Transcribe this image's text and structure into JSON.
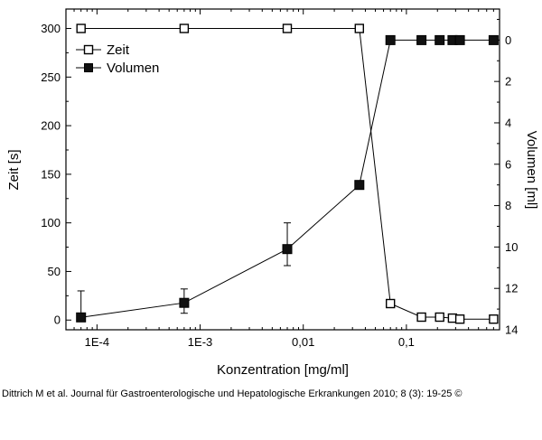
{
  "chart_data": {
    "type": "scatter",
    "xlabel": "Konzentration [mg/ml]",
    "ylabel": "Zeit [s]",
    "y2label": "Volumen [ml]",
    "xscale": "log",
    "xlim": [
      5e-05,
      0.8
    ],
    "ylim": [
      -10,
      320
    ],
    "y2lim": [
      14,
      -1.5
    ],
    "x_ticks": [
      {
        "value": 0.0001,
        "label": "1E-4"
      },
      {
        "value": 0.001,
        "label": "1E-3"
      },
      {
        "value": 0.01,
        "label": "0,01"
      },
      {
        "value": 0.1,
        "label": "0,1"
      }
    ],
    "y_ticks": [
      0,
      50,
      100,
      150,
      200,
      250,
      300
    ],
    "y2_ticks": [
      0,
      2,
      4,
      6,
      8,
      10,
      12,
      14
    ],
    "legend_position": "top-left",
    "series": [
      {
        "name": "Zeit",
        "axis": "left",
        "marker": "open-square",
        "x": [
          7e-05,
          0.0007,
          0.007,
          0.035,
          0.07,
          0.14,
          0.21,
          0.28,
          0.33,
          0.7
        ],
        "y": [
          300,
          300,
          300,
          300,
          17,
          3,
          3,
          2,
          1,
          1
        ]
      },
      {
        "name": "Volumen",
        "axis": "right",
        "marker": "filled-square",
        "x": [
          7e-05,
          0.0007,
          0.007,
          0.035,
          0.07,
          0.14,
          0.21,
          0.28,
          0.33,
          0.7
        ],
        "y": [
          13.4,
          12.7,
          10.1,
          7.0,
          0,
          0,
          0,
          0,
          0,
          0
        ],
        "error_bars_left_axis": [
          {
            "x": 7e-05,
            "low": 0,
            "high": 30
          },
          {
            "x": 0.0007,
            "low": 7,
            "high": 32
          },
          {
            "x": 0.007,
            "low": 56,
            "high": 100
          }
        ]
      }
    ]
  },
  "caption": "Dittrich M et al. Journal für Gastroenterologische und Hepatologische Erkrankungen 2010; 8 (3): 19-25 ©"
}
